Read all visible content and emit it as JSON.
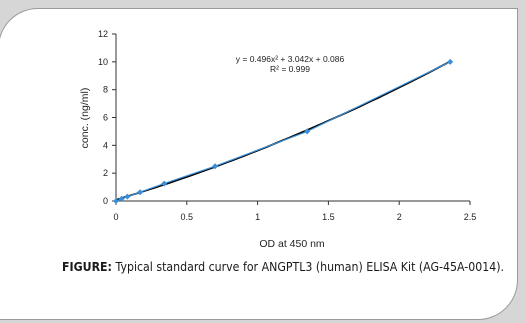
{
  "chart_data": {
    "type": "scatter",
    "xlabel": "OD at 450 nm",
    "ylabel": "conc. (ng/ml)",
    "xlim": [
      0,
      2.5
    ],
    "ylim": [
      0,
      12
    ],
    "xticks": [
      "0",
      "0.5",
      "1",
      "1.5",
      "2",
      "2.5"
    ],
    "yticks": [
      "0",
      "2",
      "4",
      "6",
      "8",
      "10",
      "12"
    ],
    "points": [
      {
        "x": 0.0,
        "y": 0.0
      },
      {
        "x": 0.04,
        "y": 0.16
      },
      {
        "x": 0.08,
        "y": 0.31
      },
      {
        "x": 0.17,
        "y": 0.63
      },
      {
        "x": 0.34,
        "y": 1.25
      },
      {
        "x": 0.7,
        "y": 2.5
      },
      {
        "x": 1.35,
        "y": 5.0
      },
      {
        "x": 2.36,
        "y": 10.0
      }
    ],
    "trendline": {
      "a": 0.496,
      "b": 3.042,
      "c": 0.086
    },
    "equation": "y = 0.496x² + 3.042x + 0.086",
    "r_squared": "R² = 0.999",
    "grid": false,
    "colors": {
      "points": "#3b8fd8",
      "line": "#000000"
    }
  },
  "caption": {
    "label": "FIGURE:",
    "text": " Typical standard curve for ANGPTL3 (human) ELISA Kit (AG-45A-0014)."
  }
}
